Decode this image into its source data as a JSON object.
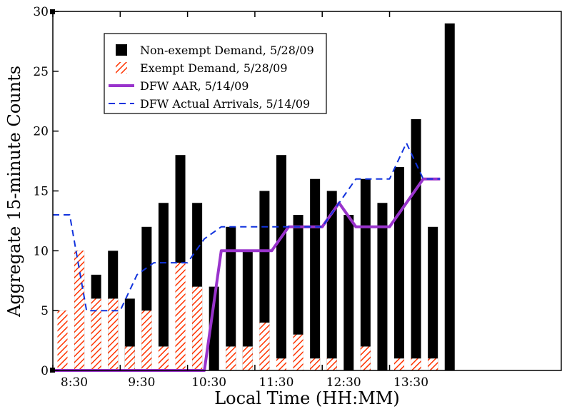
{
  "chart_data": {
    "type": "bar",
    "xlabel": "Local Time (HH:MM)",
    "ylabel": "Aggregate 15-minute Counts",
    "ylim": [
      0,
      30
    ],
    "yticks": [
      0,
      5,
      10,
      15,
      20,
      25,
      30
    ],
    "xlim": [
      8.5,
      16.05
    ],
    "xticks": [
      {
        "x": 8.5,
        "label": "8:30"
      },
      {
        "x": 9.5,
        "label": "9:30"
      },
      {
        "x": 10.5,
        "label": "10:30"
      },
      {
        "x": 11.5,
        "label": "11:30"
      },
      {
        "x": 12.5,
        "label": "12:30"
      },
      {
        "x": 13.5,
        "label": "13:30"
      }
    ],
    "bar_times": [
      8.5,
      8.75,
      9.0,
      9.25,
      9.5,
      9.75,
      10.0,
      10.25,
      10.5,
      10.75,
      11.0,
      11.25,
      11.5,
      11.75,
      12.0,
      12.25,
      12.5,
      12.75,
      13.0,
      13.25,
      13.5,
      13.75,
      14.0,
      14.25,
      14.5,
      14.75,
      15.0,
      15.25,
      15.5,
      15.75
    ],
    "bar_series": [
      {
        "name": "Non-exempt Demand, 5/28/09",
        "color": "#000000",
        "stack_top": true,
        "values": [
          5,
          10,
          8,
          10,
          6,
          12,
          14,
          18,
          14,
          7,
          12,
          10,
          15,
          18,
          13,
          16,
          15,
          13,
          16,
          14,
          17,
          21,
          12,
          29,
          0,
          0,
          0,
          0,
          0,
          0
        ]
      },
      {
        "name": "Exempt Demand, 5/28/09",
        "color": "#ff3300",
        "pattern": "hatch",
        "values": [
          5,
          10,
          6,
          6,
          2,
          5,
          2,
          9,
          7,
          0,
          2,
          2,
          4,
          1,
          3,
          1,
          1,
          0,
          2,
          0,
          1,
          1,
          1,
          0,
          0,
          0,
          0,
          0,
          0,
          0
        ]
      }
    ],
    "line_series": [
      {
        "name": "DFW AAR, 5/14/09",
        "color": "#9933cc",
        "style": "solid",
        "points": [
          [
            8.5,
            0
          ],
          [
            10.75,
            0
          ],
          [
            11.0,
            10
          ],
          [
            11.75,
            10
          ],
          [
            12.0,
            12
          ],
          [
            12.5,
            12
          ],
          [
            12.75,
            14
          ],
          [
            13.0,
            12
          ],
          [
            13.5,
            12
          ],
          [
            13.75,
            14
          ],
          [
            14.0,
            16
          ],
          [
            14.25,
            16
          ]
        ]
      },
      {
        "name": "DFW Actual Arrivals, 5/14/09",
        "color": "#1133dd",
        "style": "dashed",
        "points": [
          [
            8.5,
            13
          ],
          [
            8.75,
            13
          ],
          [
            9.0,
            5
          ],
          [
            9.5,
            5
          ],
          [
            9.75,
            8
          ],
          [
            10.0,
            9
          ],
          [
            10.5,
            9
          ],
          [
            10.75,
            11
          ],
          [
            11.0,
            12
          ],
          [
            11.5,
            12
          ],
          [
            11.75,
            12
          ],
          [
            12.0,
            12
          ],
          [
            12.5,
            12
          ],
          [
            12.75,
            14
          ],
          [
            13.0,
            16
          ],
          [
            13.5,
            16
          ],
          [
            13.75,
            19
          ],
          [
            14.0,
            16
          ],
          [
            14.25,
            16
          ]
        ]
      }
    ],
    "legend": {
      "position": "top-left",
      "entries": [
        {
          "label": "Non-exempt Demand, 5/28/09",
          "kind": "box-solid"
        },
        {
          "label": "Exempt Demand, 5/28/09",
          "kind": "box-hatch"
        },
        {
          "label": "DFW AAR, 5/14/09",
          "kind": "line-solid"
        },
        {
          "label": "DFW Actual Arrivals, 5/14/09",
          "kind": "line-dashed"
        }
      ]
    },
    "grid": false
  }
}
